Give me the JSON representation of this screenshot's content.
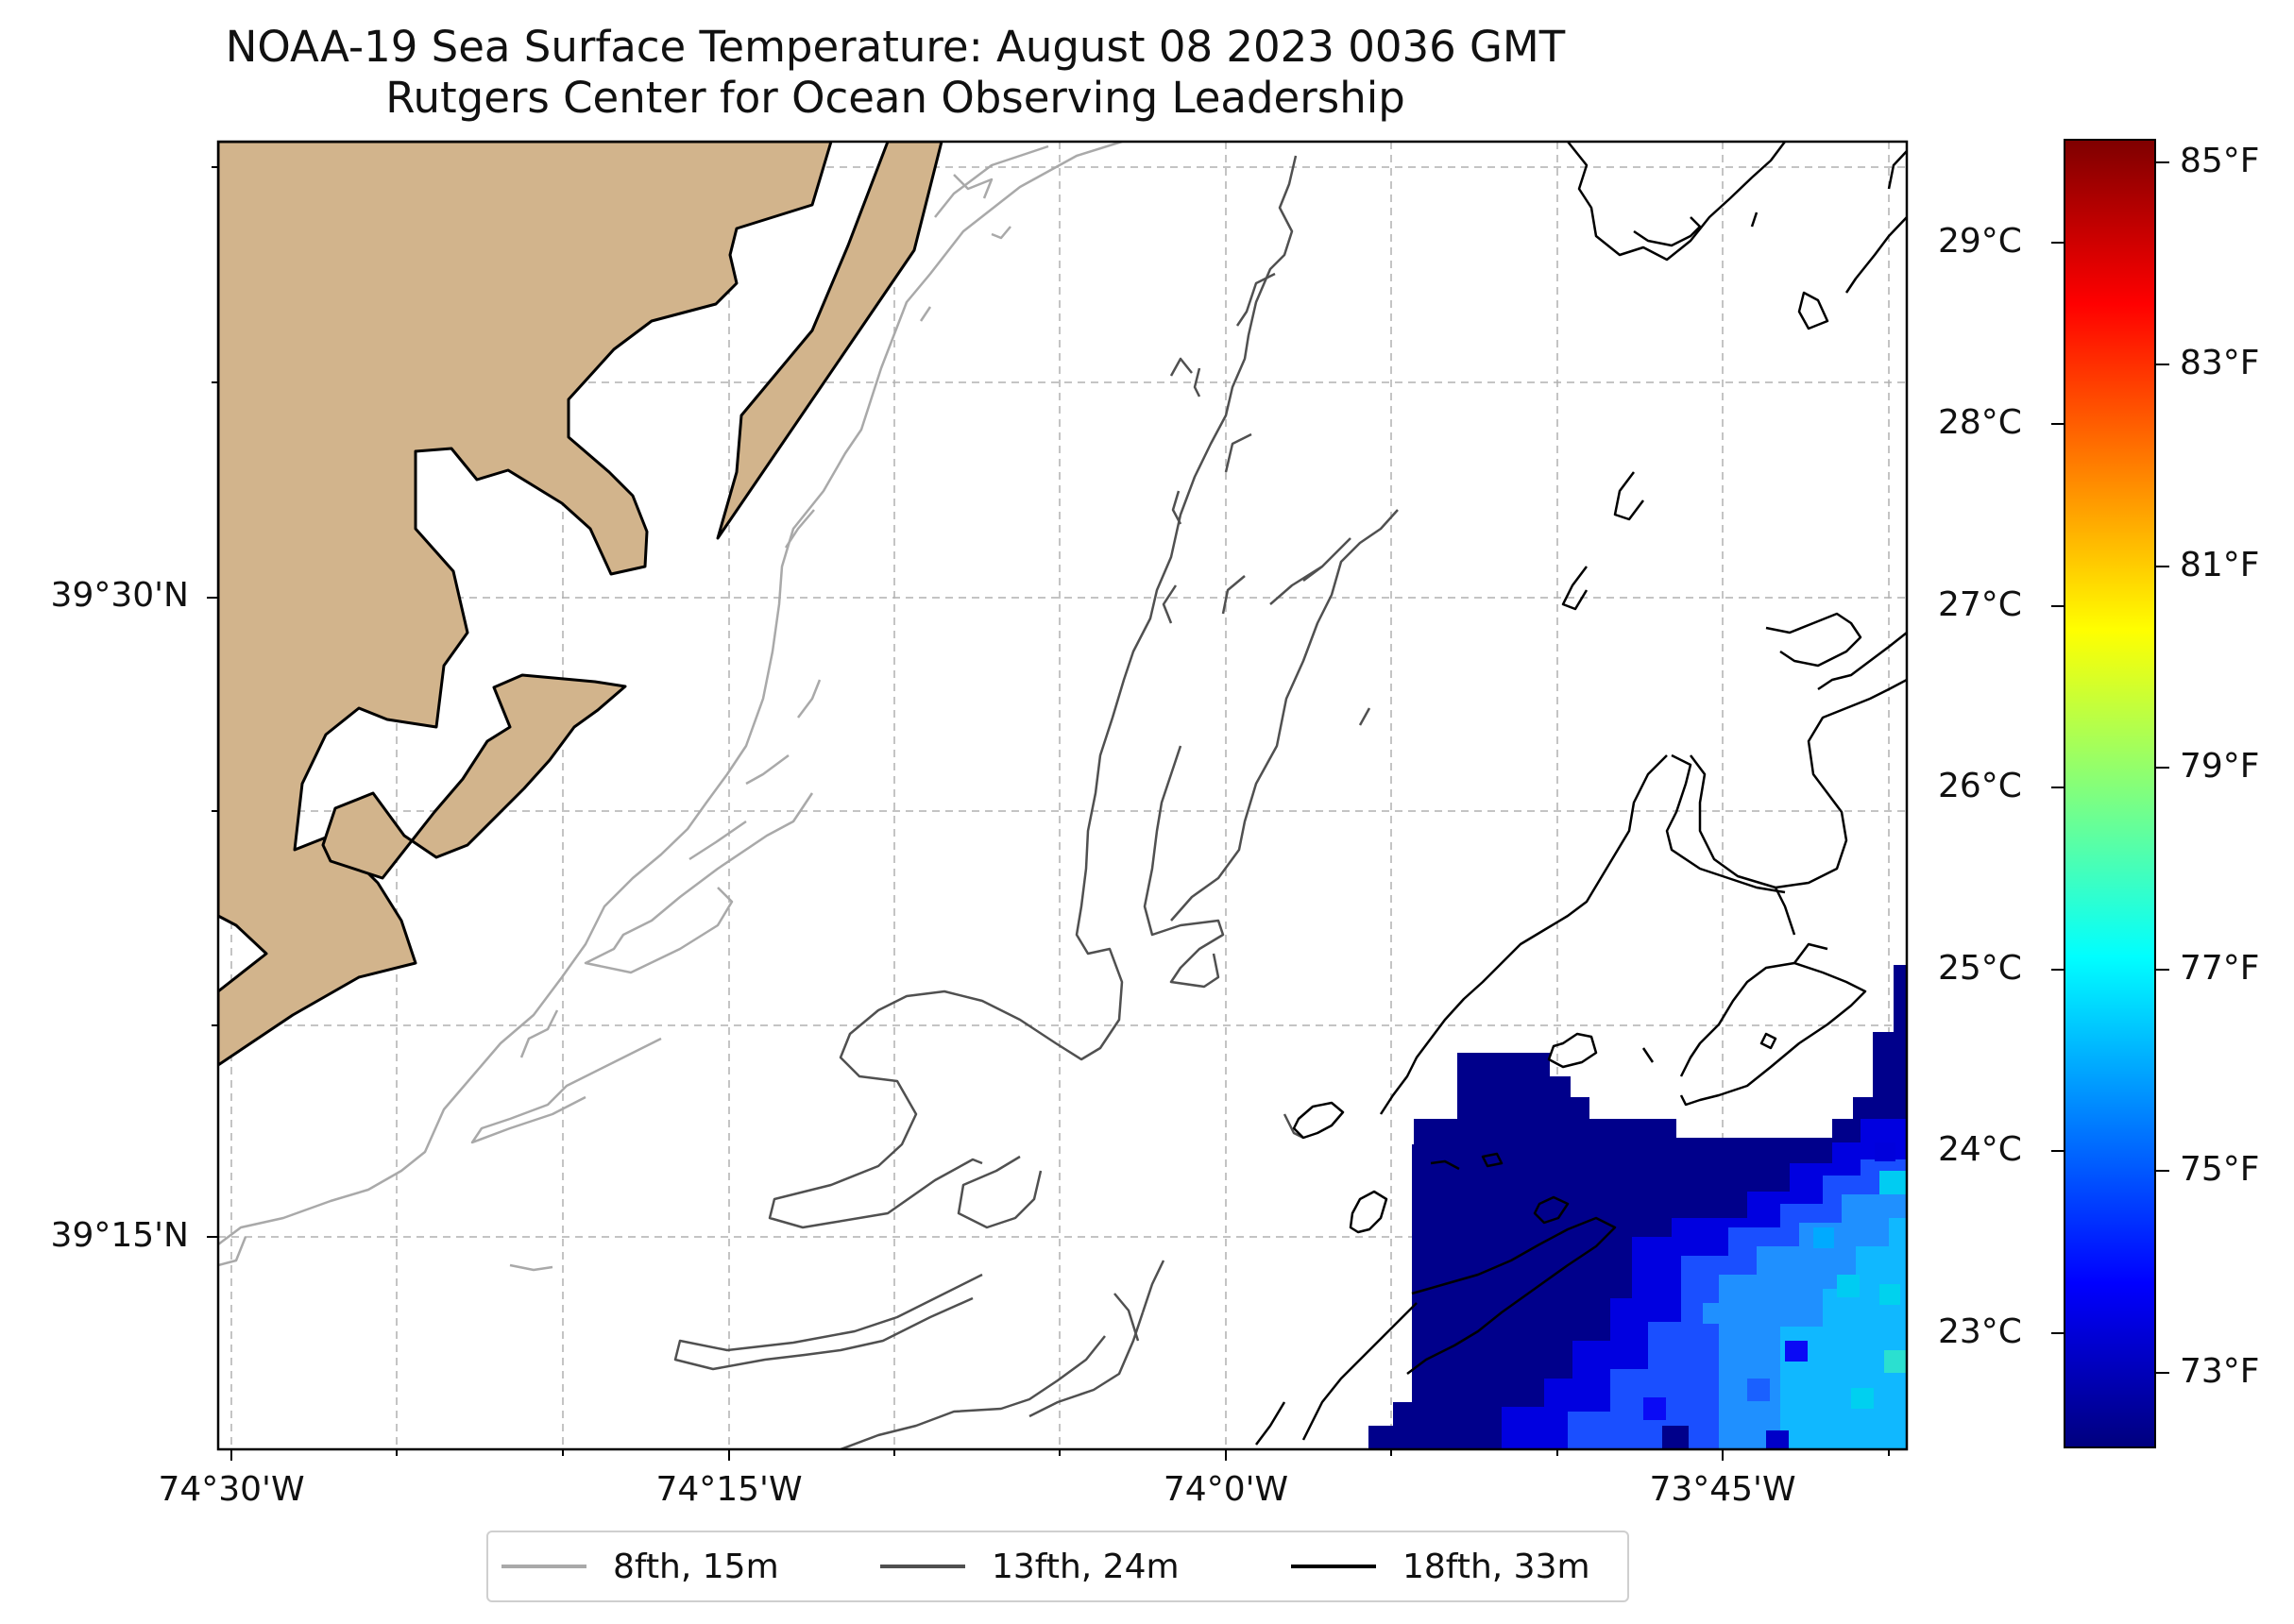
{
  "title": {
    "line1": "NOAA-19 Sea Surface Temperature: August 08 2023 0036 GMT",
    "line2": "Rutgers Center for Ocean Observing Leadership"
  },
  "map": {
    "lat_labels": [
      "39°30'N",
      "39°15'N"
    ],
    "lon_labels": [
      "74°30'W",
      "74°15'W",
      "74°0'W",
      "73°45'W"
    ],
    "colors": {
      "land": "#d2b48c",
      "land_edge": "#000000",
      "grid": "#b0b0b0"
    }
  },
  "legend": {
    "items": [
      {
        "label": "8fth, 15m",
        "color": "#a9a9a9"
      },
      {
        "label": "13fth, 24m",
        "color": "#505050"
      },
      {
        "label": "18fth, 33m",
        "color": "#000000"
      }
    ]
  },
  "colorbar": {
    "celsius_labels": [
      "29°C",
      "28°C",
      "27°C",
      "26°C",
      "25°C",
      "24°C",
      "23°C"
    ],
    "fahrenheit_labels": [
      "85°F",
      "83°F",
      "81°F",
      "79°F",
      "77°F",
      "75°F",
      "73°F"
    ],
    "colormap": "jet"
  }
}
